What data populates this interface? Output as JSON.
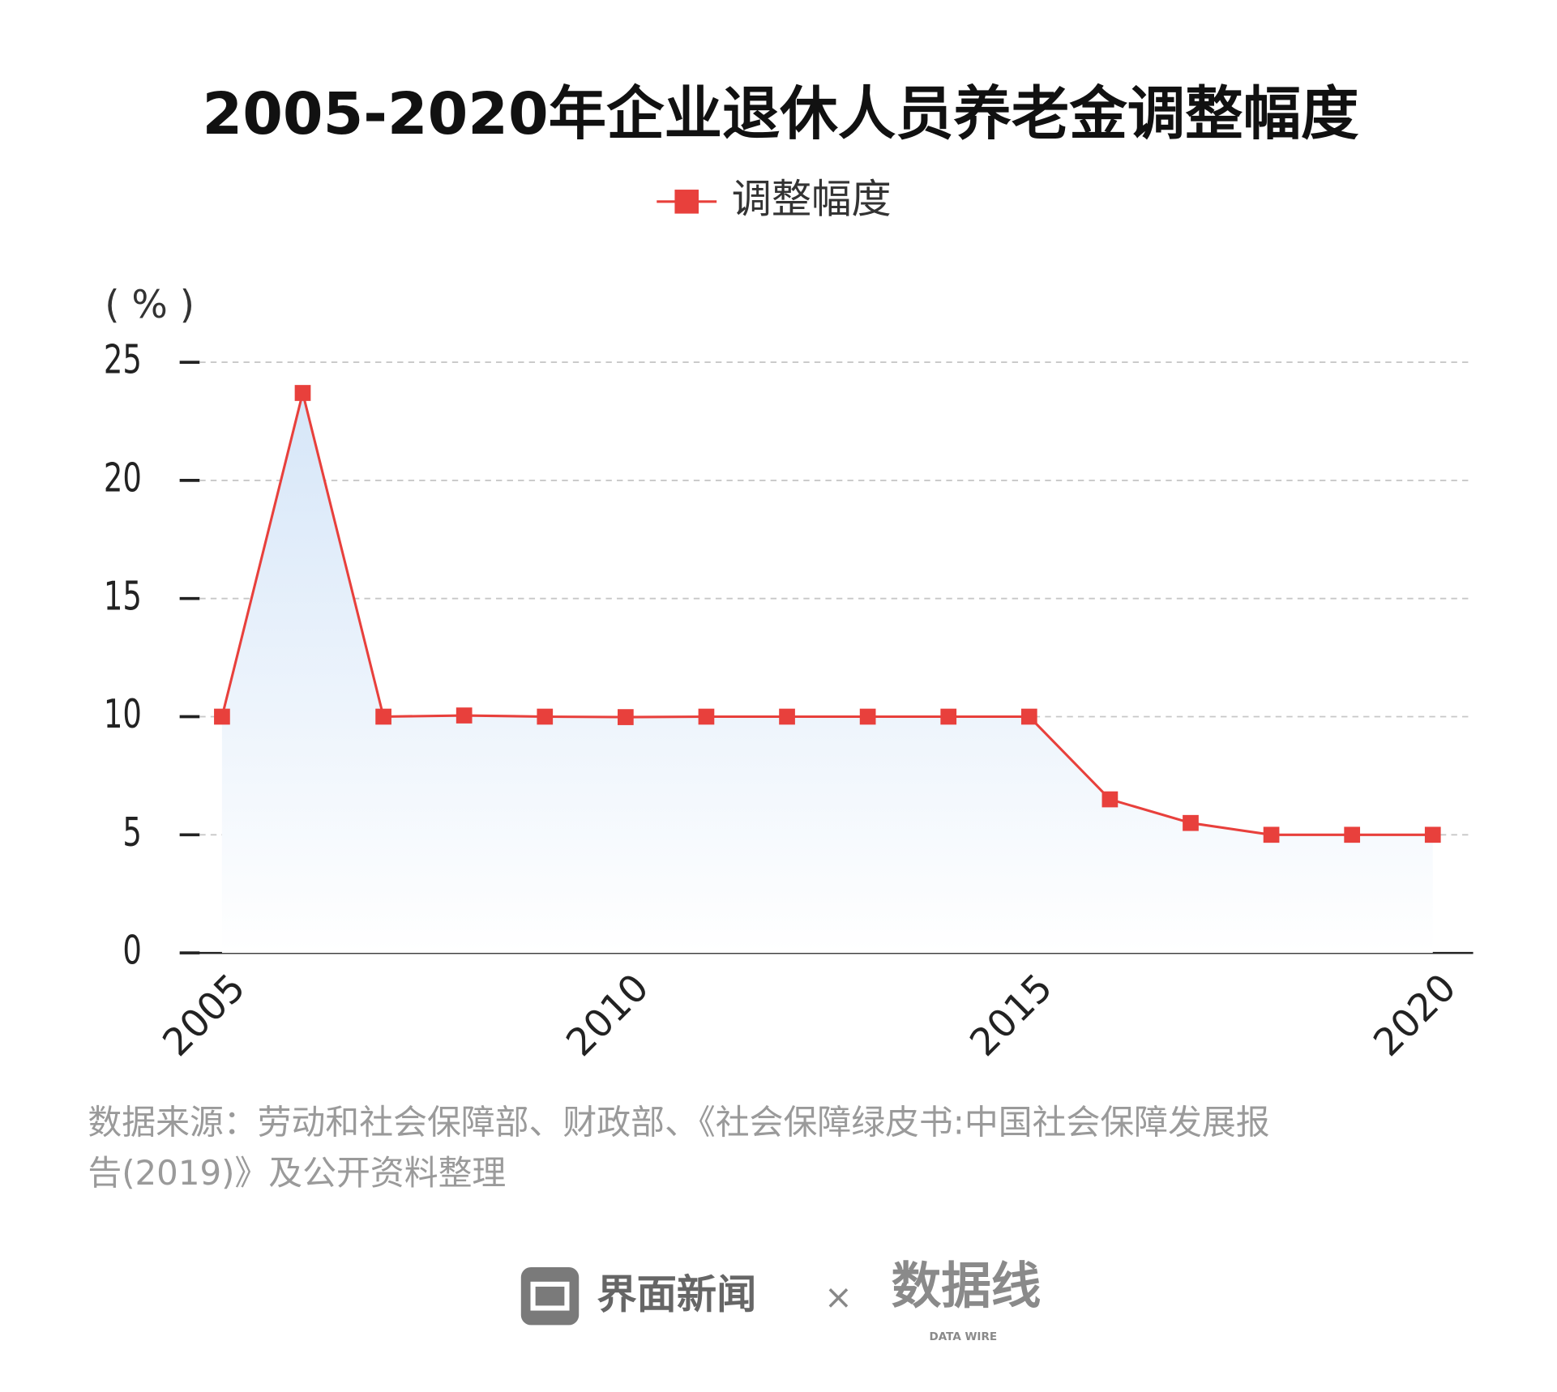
{
  "chart_data": {
    "type": "line",
    "title": "2005-2020年企业退休人员养老金调整幅度",
    "y_label": "( % )",
    "x": [
      2005,
      2006,
      2007,
      2008,
      2009,
      2010,
      2011,
      2012,
      2013,
      2014,
      2015,
      2016,
      2017,
      2018,
      2019,
      2020
    ],
    "series": [
      {
        "name": "调整幅度",
        "color": "#e8403c",
        "values": [
          10,
          23.7,
          10,
          10.05,
          10,
          9.98,
          10,
          10,
          10,
          10,
          10,
          6.5,
          5.5,
          5,
          5,
          5
        ]
      }
    ],
    "xlim": [
      2004.5,
      2020.5
    ],
    "xticks": [
      2005,
      2010,
      2015,
      2020
    ],
    "ylim": [
      0,
      25
    ],
    "yticks": [
      0,
      5,
      10,
      15,
      20,
      25
    ],
    "grid": true,
    "area": true,
    "source": [
      "数据来源：劳动和社会保障部、财政部、《社会保障绿皮书:中国社会保障发展报",
      "告(2019)》及公开资料整理"
    ]
  },
  "footer": {
    "brand": "界面新闻",
    "times": "×",
    "partner": "数据线",
    "partner_sub": "DATA WIRE"
  }
}
